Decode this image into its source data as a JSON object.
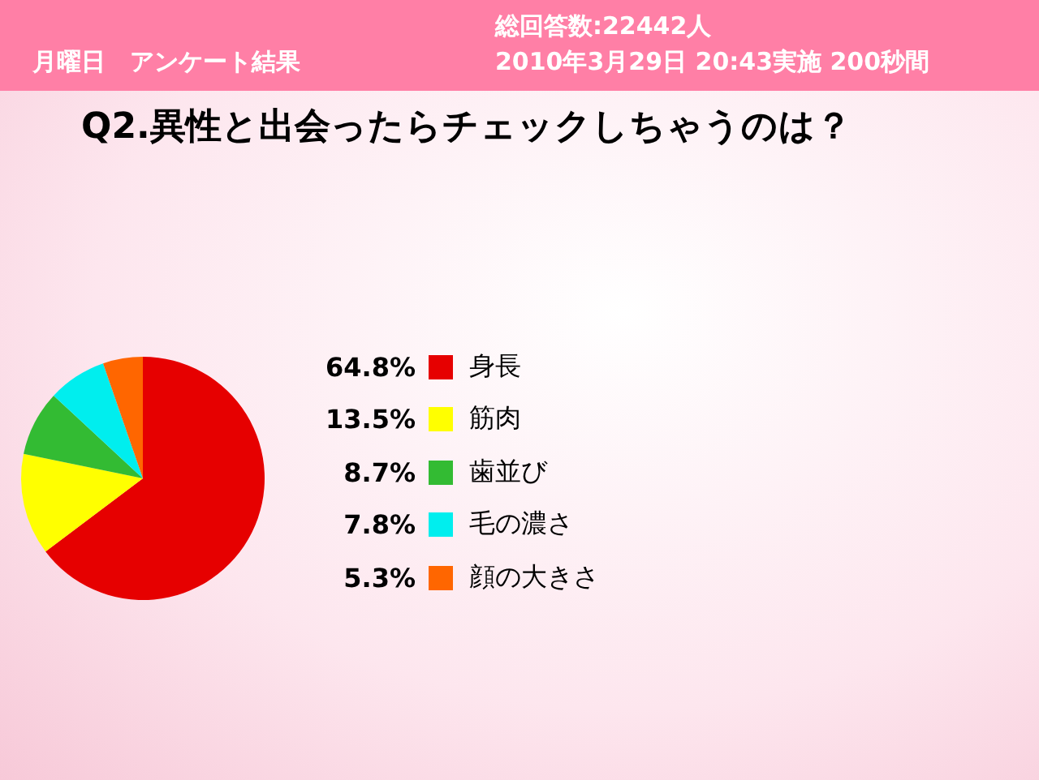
{
  "chart_data": {
    "type": "pie",
    "title": "Q2.異性と出会ったらチェックしちゃうのは？",
    "annotations": [
      "月曜日　アンケート結果",
      "総回答数:22442人",
      "2010年3月29日 20:43実施 200秒間"
    ],
    "categories": [
      "身長",
      "筋肉",
      "歯並び",
      "毛の濃さ",
      "顔の大きさ"
    ],
    "values": [
      64.8,
      13.5,
      8.7,
      7.8,
      5.3
    ],
    "colors": [
      "#e60000",
      "#ffff00",
      "#33bb33",
      "#00eeee",
      "#ff6600"
    ],
    "value_labels": [
      "64.8%",
      "13.5%",
      "8.7%",
      "7.8%",
      "5.3%"
    ],
    "legend": "right"
  }
}
